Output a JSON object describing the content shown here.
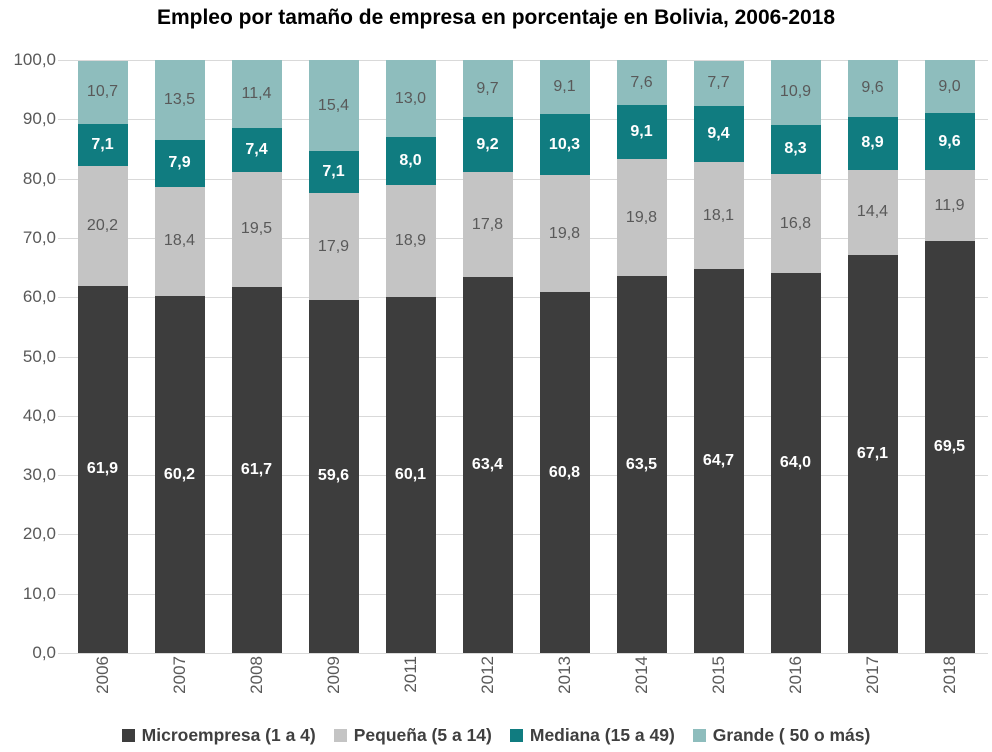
{
  "chart": {
    "title": "Empleo por tamaño de empresa en porcentaje en Bolivia, 2006-2018"
  },
  "chart_data": {
    "type": "bar",
    "stacked": true,
    "title": "Empleo por tamaño de empresa en porcentaje en Bolivia, 2006-2018",
    "xlabel": "",
    "ylabel": "",
    "ylim": [
      0,
      100
    ],
    "grid": true,
    "legend_position": "bottom",
    "categories": [
      "2006",
      "2007",
      "2008",
      "2009",
      "2011",
      "2012",
      "2013",
      "2014",
      "2015",
      "2016",
      "2017",
      "2018"
    ],
    "y_axis": {
      "min": 0,
      "max": 100,
      "step": 10,
      "ticks": [
        "100,0",
        "90,0",
        "80,0",
        "70,0",
        "60,0",
        "50,0",
        "40,0",
        "30,0",
        "20,0",
        "10,0",
        "0,0"
      ]
    },
    "series": [
      {
        "name": "Microempresa (1 a 4)",
        "color": "#3d3d3d",
        "label_color": "#ffffff",
        "values": [
          61.9,
          60.2,
          61.7,
          59.6,
          60.1,
          63.4,
          60.8,
          63.5,
          64.7,
          64.0,
          67.1,
          69.5
        ],
        "labels": [
          "61,9",
          "60,2",
          "61,7",
          "59,6",
          "60,1",
          "63,4",
          "60,8",
          "63,5",
          "64,7",
          "64,0",
          "67,1",
          "69,5"
        ]
      },
      {
        "name": "Pequeña (5 a 14)",
        "color": "#c4c4c4",
        "label_color": "#595959",
        "values": [
          20.2,
          18.4,
          19.5,
          17.9,
          18.9,
          17.8,
          19.8,
          19.8,
          18.1,
          16.8,
          14.4,
          11.9
        ],
        "labels": [
          "20,2",
          "18,4",
          "19,5",
          "17,9",
          "18,9",
          "17,8",
          "19,8",
          "19,8",
          "18,1",
          "16,8",
          "14,4",
          "11,9"
        ]
      },
      {
        "name": "Mediana (15 a 49)",
        "color": "#107c80",
        "label_color": "#ffffff",
        "values": [
          7.1,
          7.9,
          7.4,
          7.1,
          8.0,
          9.2,
          10.3,
          9.1,
          9.4,
          8.3,
          8.9,
          9.6
        ],
        "labels": [
          "7,1",
          "7,9",
          "7,4",
          "7,1",
          "8,0",
          "9,2",
          "10,3",
          "9,1",
          "9,4",
          "8,3",
          "8,9",
          "9,6"
        ]
      },
      {
        "name": "Grande ( 50 o más)",
        "color": "#8ebdbd",
        "label_color": "#595959",
        "values": [
          10.7,
          13.5,
          11.4,
          15.4,
          13.0,
          9.7,
          9.1,
          7.6,
          7.7,
          10.9,
          9.6,
          9.0
        ],
        "labels": [
          "10,7",
          "13,5",
          "11,4",
          "15,4",
          "13,0",
          "9,7",
          "9,1",
          "7,6",
          "7,7",
          "10,9",
          "9,6",
          "9,0"
        ]
      }
    ],
    "colors": {
      "grid": "#d9d9d9",
      "axis_text": "#595959",
      "legend_text": "#3f3f3f",
      "title_text": "#000000"
    }
  }
}
